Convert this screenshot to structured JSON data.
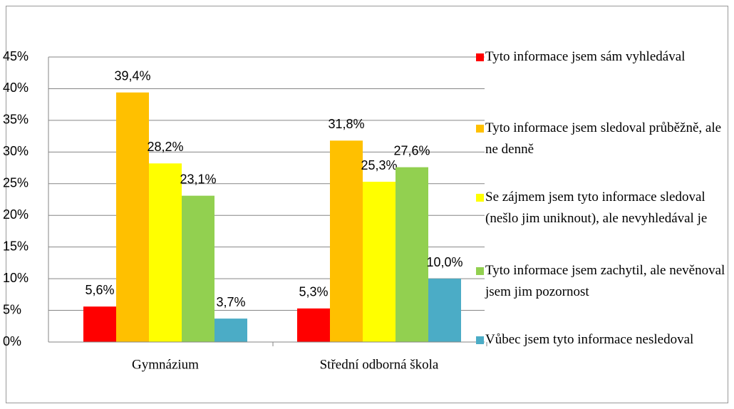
{
  "chart_data": {
    "type": "bar",
    "categories": [
      "Gymnázium",
      "Střední odborná škola"
    ],
    "series": [
      {
        "name": "Tyto informace jsem sám vyhledával",
        "color": "#ff0000",
        "values": [
          5.6,
          5.3
        ],
        "value_labels": [
          "5,6%",
          "5,3%"
        ]
      },
      {
        "name": "Tyto informace jsem sledoval průběžně, ale ne denně",
        "color": "#ffc000",
        "values": [
          39.4,
          31.8
        ],
        "value_labels": [
          "39,4%",
          "31,8%"
        ]
      },
      {
        "name": "Se zájmem jsem tyto informace sledoval (nešlo jim uniknout), ale nevyhledával je",
        "color": "#ffff00",
        "values": [
          28.2,
          25.3
        ],
        "value_labels": [
          "28,2%",
          "25,3%"
        ]
      },
      {
        "name": "Tyto informace jsem zachytil, ale nevěnoval jsem jim pozornost",
        "color": "#92d050",
        "values": [
          23.1,
          27.6
        ],
        "value_labels": [
          "23,1%",
          "27,6%"
        ]
      },
      {
        "name": "Vůbec jsem tyto informace nesledoval",
        "color": "#4bacc6",
        "values": [
          3.7,
          10.0
        ],
        "value_labels": [
          "3,7%",
          "10,0%"
        ]
      }
    ],
    "ylim": [
      0,
      45
    ],
    "yticks": [
      {
        "value": 0,
        "label": "0%"
      },
      {
        "value": 5,
        "label": "5%"
      },
      {
        "value": 10,
        "label": "10%"
      },
      {
        "value": 15,
        "label": "15%"
      },
      {
        "value": 20,
        "label": "20%"
      },
      {
        "value": 25,
        "label": "25%"
      },
      {
        "value": 30,
        "label": "30%"
      },
      {
        "value": 35,
        "label": "35%"
      },
      {
        "value": 40,
        "label": "40%"
      },
      {
        "value": 45,
        "label": "45%"
      }
    ],
    "grid": true,
    "legend": "right"
  }
}
